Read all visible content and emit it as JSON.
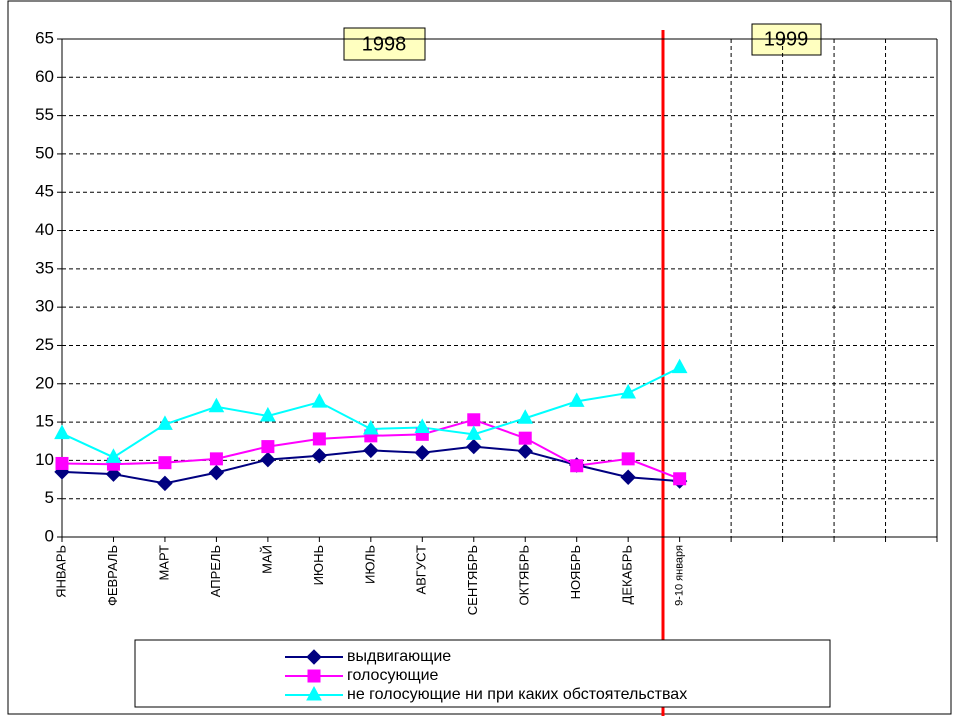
{
  "chart_data": {
    "type": "line",
    "annotations": [
      "1998",
      "1999"
    ],
    "categories": [
      "ЯНВАРЬ",
      "ФЕВРАЛЬ",
      "МАРТ",
      "АПРЕЛЬ",
      "МАЙ",
      "ИЮНЬ",
      "ИЮЛЬ",
      "АВГУСТ",
      "СЕНТЯБРЬ",
      "ОКТЯБРЬ",
      "НОЯБРЬ",
      "ДЕКАБРЬ",
      "9-10 января",
      null,
      null,
      null,
      null,
      null
    ],
    "series": [
      {
        "name": "выдвигающие",
        "color": "#000080",
        "marker": "diamond",
        "values": [
          8.5,
          8.2,
          7.0,
          8.4,
          10.1,
          10.6,
          11.3,
          11.0,
          11.8,
          11.2,
          9.4,
          7.8,
          7.3,
          null,
          null,
          null,
          null,
          null
        ]
      },
      {
        "name": "голосующие",
        "color": "#ff00ff",
        "marker": "square",
        "values": [
          9.6,
          9.5,
          9.7,
          10.2,
          11.8,
          12.8,
          13.2,
          13.4,
          15.3,
          12.9,
          9.3,
          10.2,
          7.6,
          null,
          null,
          null,
          null,
          null
        ]
      },
      {
        "name": "не голосующие ни при каких обстоятельствах",
        "color": "#00ffff",
        "marker": "triangle",
        "values": [
          13.5,
          10.4,
          14.7,
          17.0,
          15.8,
          17.6,
          14.1,
          14.3,
          13.4,
          15.5,
          17.7,
          18.8,
          22.1,
          null,
          null,
          null,
          null,
          null
        ]
      }
    ],
    "ylim": [
      0,
      65
    ],
    "yticks": [
      0,
      5,
      10,
      15,
      20,
      25,
      30,
      35,
      40,
      45,
      50,
      55,
      60,
      65
    ],
    "grid": true
  }
}
